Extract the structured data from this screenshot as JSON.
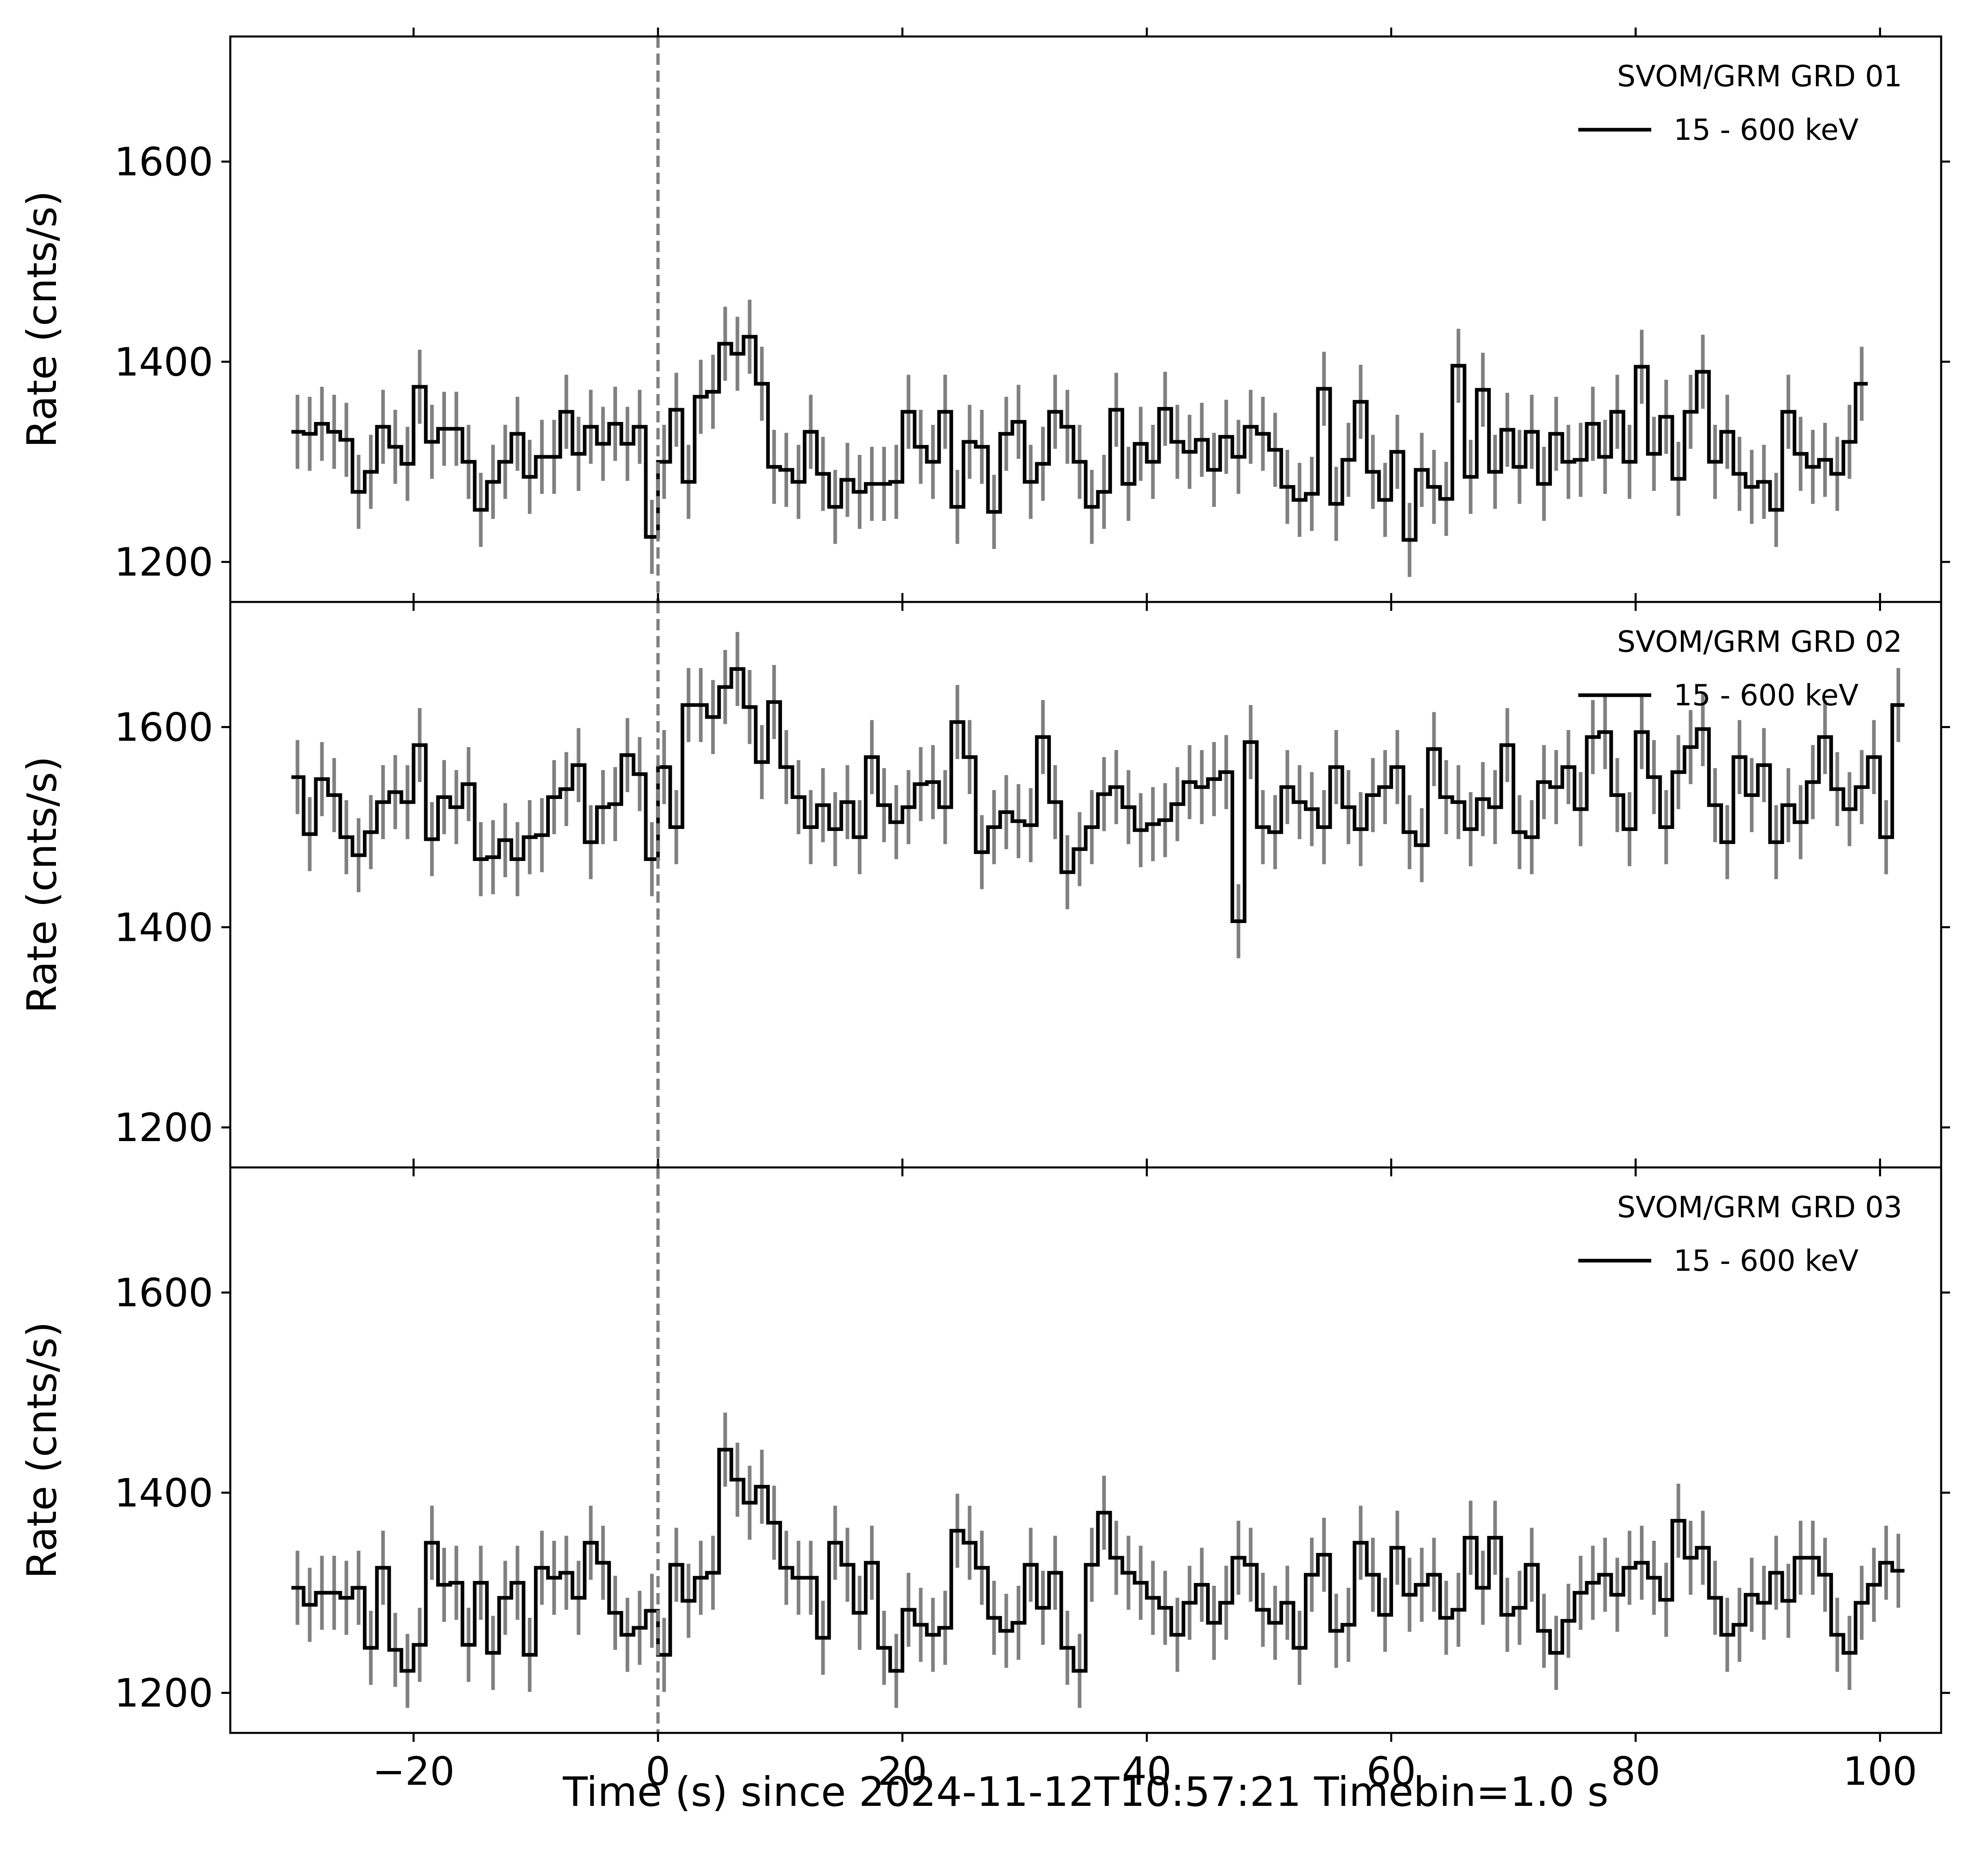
{
  "chart_data": {
    "type": "line",
    "xlabel": "Time (s) since 2024-11-12T10:57:21  Timebin=1.0 s",
    "ylabel": "Rate (cnts/s)",
    "xlim": [
      -35,
      105
    ],
    "ylim": [
      1160,
      1725
    ],
    "x_ticks": [
      -20,
      0,
      20,
      40,
      60,
      80,
      100
    ],
    "x_tick_labels": [
      "−20",
      "0",
      "20",
      "40",
      "60",
      "80",
      "100"
    ],
    "y_ticks": [
      1200,
      1400,
      1600
    ],
    "y_tick_labels": [
      "1200",
      "1400",
      "1600"
    ],
    "trigger_time": 0,
    "x_start": -30,
    "bin_width": 1.0,
    "shared_x": true,
    "colors": {
      "line": "#000000",
      "errorbar": "#808080",
      "trigger": "#808080"
    },
    "panels": [
      {
        "legend_title": "SVOM/GRM GRD 01",
        "series_name": "15 - 600  keV",
        "legend_loc": "upper right",
        "error": 37,
        "values": [
          1330,
          1328,
          1338,
          1330,
          1322,
          1270,
          1290,
          1335,
          1315,
          1298,
          1375,
          1320,
          1333,
          1333,
          1300,
          1252,
          1280,
          1300,
          1328,
          1285,
          1305,
          1305,
          1350,
          1308,
          1335,
          1318,
          1338,
          1318,
          1335,
          1225,
          1300,
          1352,
          1280,
          1365,
          1370,
          1418,
          1408,
          1425,
          1378,
          1295,
          1292,
          1280,
          1330,
          1288,
          1255,
          1282,
          1270,
          1278,
          1278,
          1280,
          1350,
          1315,
          1300,
          1350,
          1255,
          1320,
          1315,
          1250,
          1328,
          1340,
          1280,
          1298,
          1350,
          1335,
          1300,
          1255,
          1270,
          1352,
          1278,
          1318,
          1300,
          1353,
          1320,
          1310,
          1322,
          1292,
          1325,
          1305,
          1335,
          1328,
          1312,
          1275,
          1262,
          1268,
          1373,
          1258,
          1302,
          1360,
          1290,
          1262,
          1310,
          1222,
          1292,
          1275,
          1263,
          1396,
          1285,
          1372,
          1290,
          1332,
          1295,
          1330,
          1278,
          1328,
          1300,
          1302,
          1338,
          1305,
          1350,
          1300,
          1395,
          1308,
          1345,
          1283,
          1350,
          1390,
          1300,
          1330,
          1288,
          1275,
          1280,
          1252,
          1350,
          1308,
          1295,
          1302,
          1288,
          1320,
          1378
        ]
      },
      {
        "legend_title": "SVOM/GRM GRD 02",
        "series_name": "15 - 600  keV",
        "legend_loc": "upper right",
        "error": 37,
        "values": [
          1550,
          1493,
          1548,
          1532,
          1490,
          1472,
          1495,
          1525,
          1535,
          1525,
          1582,
          1488,
          1530,
          1520,
          1543,
          1468,
          1470,
          1487,
          1468,
          1490,
          1492,
          1530,
          1538,
          1562,
          1485,
          1520,
          1523,
          1572,
          1553,
          1468,
          1560,
          1500,
          1622,
          1622,
          1610,
          1640,
          1658,
          1620,
          1565,
          1625,
          1560,
          1530,
          1500,
          1522,
          1498,
          1525,
          1490,
          1570,
          1522,
          1505,
          1520,
          1543,
          1545,
          1520,
          1605,
          1570,
          1475,
          1500,
          1515,
          1506,
          1502,
          1590,
          1525,
          1455,
          1478,
          1500,
          1533,
          1540,
          1520,
          1497,
          1503,
          1507,
          1523,
          1545,
          1540,
          1548,
          1555,
          1406,
          1585,
          1500,
          1495,
          1540,
          1525,
          1518,
          1500,
          1560,
          1520,
          1498,
          1532,
          1540,
          1560,
          1495,
          1482,
          1578,
          1530,
          1525,
          1498,
          1528,
          1520,
          1582,
          1495,
          1490,
          1545,
          1540,
          1560,
          1518,
          1590,
          1595,
          1532,
          1498,
          1595,
          1550,
          1500,
          1555,
          1580,
          1598,
          1522,
          1485,
          1570,
          1532,
          1562,
          1485,
          1522,
          1505,
          1545,
          1590,
          1538,
          1518,
          1540,
          1570,
          1490,
          1622
        ]
      },
      {
        "legend_title": "SVOM/GRM GRD 03",
        "series_name": "15 - 600  keV",
        "legend_loc": "upper right",
        "error": 37,
        "values": [
          1305,
          1288,
          1300,
          1300,
          1295,
          1305,
          1245,
          1325,
          1243,
          1222,
          1248,
          1350,
          1308,
          1310,
          1248,
          1310,
          1240,
          1295,
          1310,
          1238,
          1325,
          1315,
          1320,
          1295,
          1350,
          1330,
          1280,
          1258,
          1265,
          1282,
          1238,
          1328,
          1292,
          1315,
          1320,
          1443,
          1413,
          1390,
          1406,
          1370,
          1325,
          1315,
          1315,
          1255,
          1350,
          1328,
          1280,
          1330,
          1245,
          1222,
          1283,
          1268,
          1258,
          1265,
          1362,
          1350,
          1325,
          1275,
          1262,
          1270,
          1328,
          1285,
          1320,
          1245,
          1222,
          1328,
          1380,
          1335,
          1320,
          1310,
          1295,
          1285,
          1258,
          1290,
          1308,
          1270,
          1290,
          1335,
          1328,
          1283,
          1270,
          1290,
          1245,
          1318,
          1338,
          1262,
          1268,
          1350,
          1318,
          1278,
          1345,
          1298,
          1308,
          1318,
          1275,
          1283,
          1355,
          1305,
          1355,
          1278,
          1285,
          1328,
          1262,
          1240,
          1272,
          1300,
          1310,
          1318,
          1298,
          1325,
          1330,
          1315,
          1293,
          1372,
          1335,
          1345,
          1295,
          1258,
          1268,
          1298,
          1290,
          1320,
          1292,
          1335,
          1335,
          1318,
          1258,
          1240,
          1290,
          1308,
          1330,
          1322
        ]
      }
    ]
  }
}
